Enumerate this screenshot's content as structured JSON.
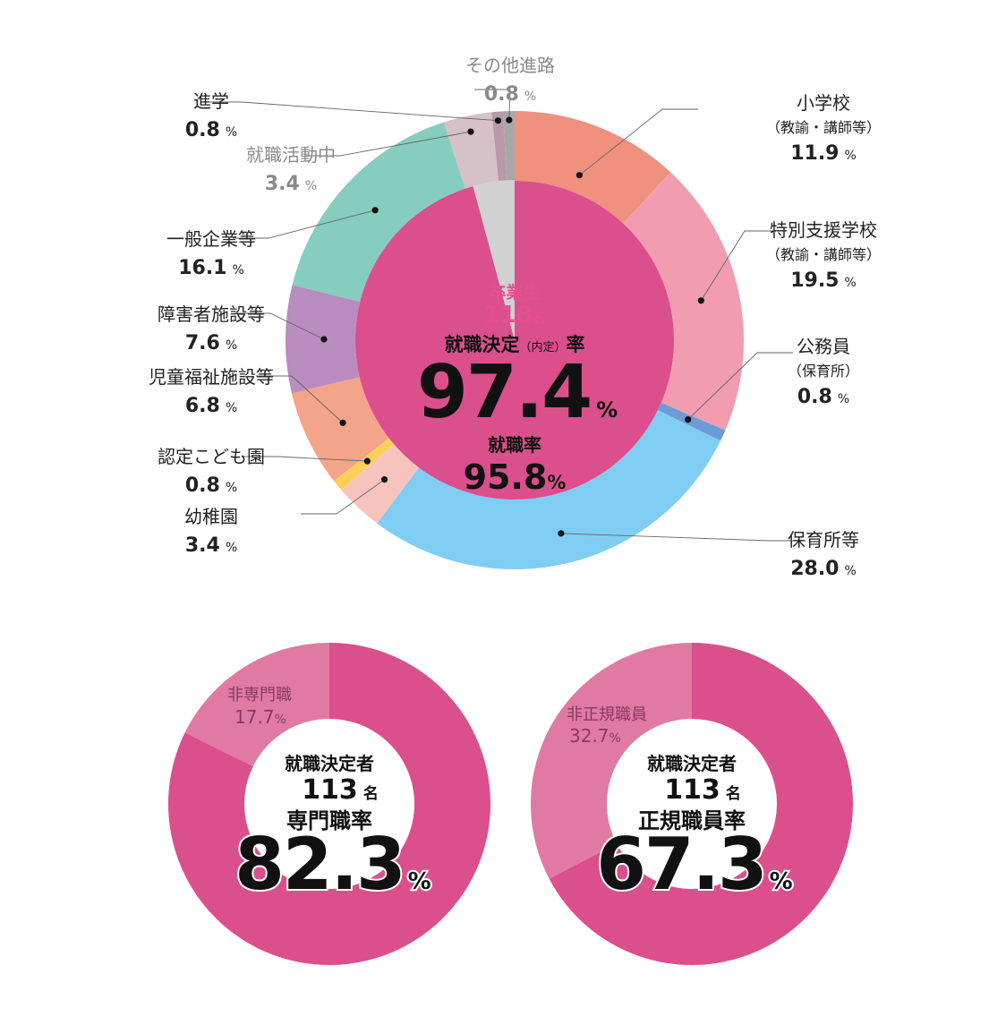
{
  "chart_data": [
    {
      "type": "pie",
      "subtype": "nested-donut",
      "center": {
        "graduates_label": "卒業生",
        "graduates_value": "118",
        "graduates_unit": "名",
        "decision_rate_label_a": "就職決定",
        "decision_rate_label_b": "（内定）",
        "decision_rate_label_c": "率",
        "decision_rate_value": "97.4",
        "decision_rate_unit": "%",
        "employment_rate_label": "就職率",
        "employment_rate_value": "95.8",
        "employment_rate_unit": "%"
      },
      "inner_ring": [
        {
          "name": "就職率",
          "value": 95.8,
          "color": "#db4f8c"
        },
        {
          "name": "",
          "value": 4.2,
          "color": "#d1d1d1"
        }
      ],
      "outer_ring": [
        {
          "lines": [
            "小学校",
            "（教諭・講師等）"
          ],
          "value": 11.9,
          "pct": "11.9",
          "color": "#f0907e",
          "side": "right"
        },
        {
          "lines": [
            "特別支援学校",
            "（教諭・講師等）"
          ],
          "value": 19.5,
          "pct": "19.5",
          "color": "#f29cb0",
          "side": "right"
        },
        {
          "lines": [
            "公務員",
            "（保育所）"
          ],
          "value": 0.8,
          "pct": "0.8",
          "color": "#6b9bd8",
          "side": "right"
        },
        {
          "lines": [
            "保育所等"
          ],
          "value": 28.0,
          "pct": "28.0",
          "color": "#80cdf3",
          "side": "right"
        },
        {
          "lines": [
            "幼稚園"
          ],
          "value": 3.4,
          "pct": "3.4",
          "color": "#f7c4bd",
          "side": "left"
        },
        {
          "lines": [
            "認定こども園"
          ],
          "value": 0.8,
          "pct": "0.8",
          "color": "#fbd05a",
          "side": "left"
        },
        {
          "lines": [
            "児童福祉施設等"
          ],
          "value": 6.8,
          "pct": "6.8",
          "color": "#f4a488",
          "side": "left"
        },
        {
          "lines": [
            "障害者施設等"
          ],
          "value": 7.6,
          "pct": "7.6",
          "color": "#b98dbf",
          "side": "left"
        },
        {
          "lines": [
            "一般企業等"
          ],
          "value": 16.1,
          "pct": "16.1",
          "color": "#86cdbf",
          "side": "left"
        },
        {
          "lines": [
            "就職活動中"
          ],
          "value": 3.4,
          "pct": "3.4",
          "color": "#d6c1c8",
          "side": "left",
          "muted": true
        },
        {
          "lines": [
            "進学"
          ],
          "value": 0.8,
          "pct": "0.8",
          "color": "#b89aa7",
          "side": "left"
        },
        {
          "lines": [
            "その他進路"
          ],
          "value": 0.8,
          "pct": "0.8",
          "color": "#a8a8a8",
          "side": "top",
          "muted": true
        }
      ],
      "unit": "%"
    },
    {
      "type": "pie",
      "subtype": "donut",
      "slices": [
        {
          "name": "専門職",
          "value": 82.3,
          "color": "#db4f8c"
        },
        {
          "name": "非専門職",
          "value": 17.7,
          "color": "#e07aa2"
        }
      ],
      "minor_label": "非専門職",
      "minor_pct": "17.7",
      "center": {
        "label1": "就職決定者",
        "count": "113",
        "count_unit": "名",
        "rate_label": "専門職率",
        "rate_value": "82.3",
        "rate_unit": "%"
      }
    },
    {
      "type": "pie",
      "subtype": "donut",
      "slices": [
        {
          "name": "正規職員",
          "value": 67.3,
          "color": "#db4f8c"
        },
        {
          "name": "非正規職員",
          "value": 32.7,
          "color": "#e07aa2"
        }
      ],
      "minor_label": "非正規職員",
      "minor_pct": "32.7",
      "center": {
        "label1": "就職決定者",
        "count": "113",
        "count_unit": "名",
        "rate_label": "正規職員率",
        "rate_value": "67.3",
        "rate_unit": "%"
      }
    }
  ],
  "colors": {
    "accent_pink": "#db4f8c",
    "graduates_pink": "#e4508f",
    "leader_line": "#666666",
    "muted_text": "#8a8a8a"
  }
}
